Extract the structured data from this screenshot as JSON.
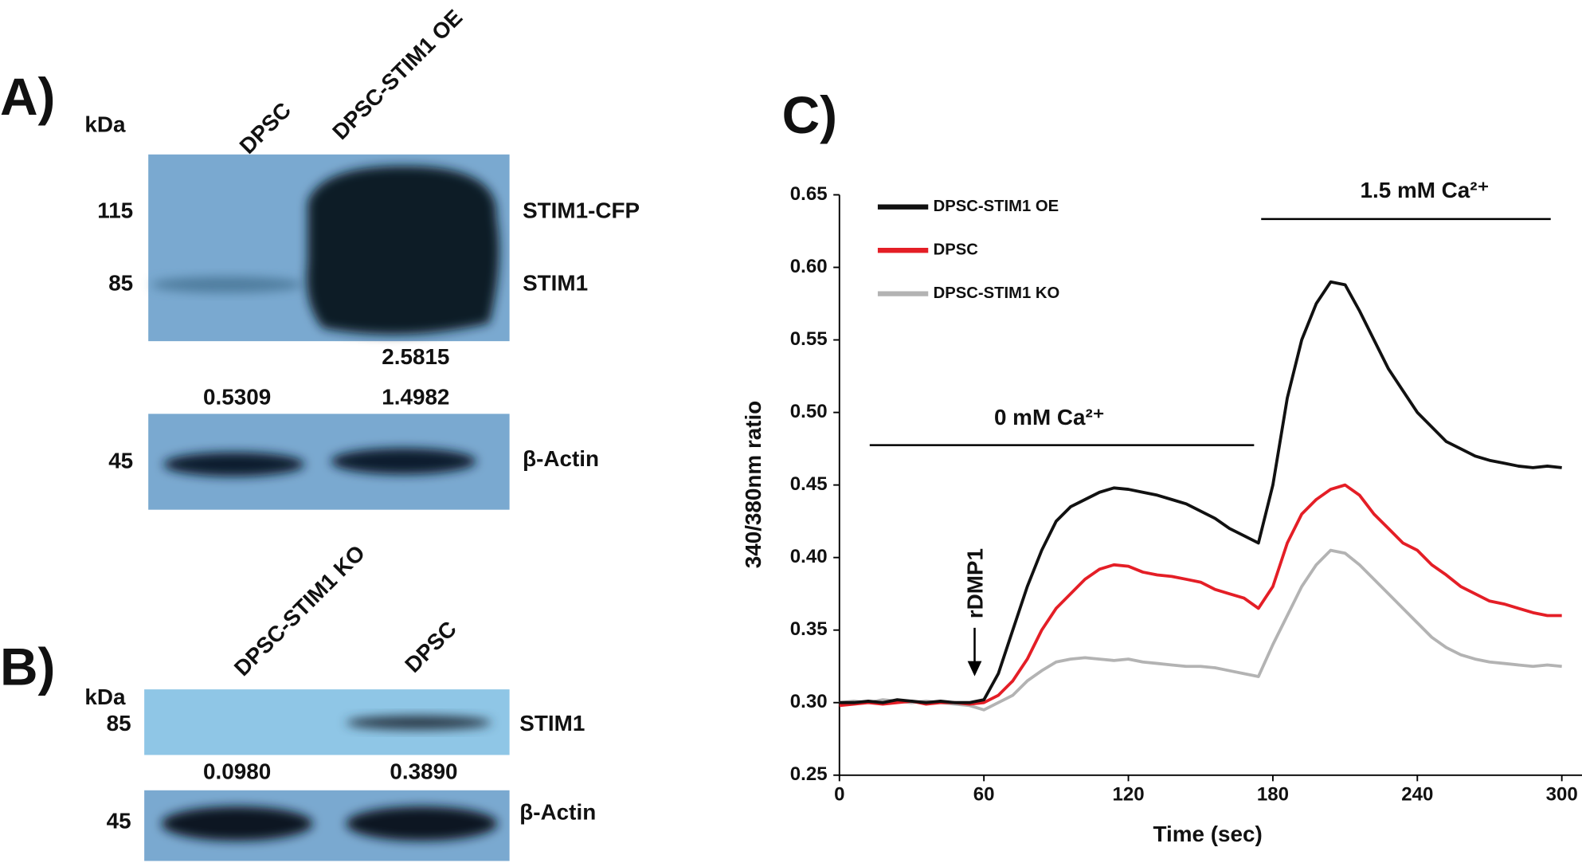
{
  "panel_a": {
    "label": "A)",
    "unit": "kDa",
    "lanes": [
      "DPSC",
      "DPSC-STIM1 OE"
    ],
    "markers": [
      115,
      85,
      45
    ],
    "bands": [
      "STIM1-CFP",
      "STIM1",
      "β-Actin"
    ],
    "ratios": [
      "2.5815",
      "0.5309",
      "1.4982"
    ]
  },
  "panel_b": {
    "label": "B)",
    "unit": "kDa",
    "lanes": [
      "DPSC-STIM1 KO",
      "DPSC"
    ],
    "markers": [
      85,
      45
    ],
    "bands": [
      "STIM1",
      "β-Actin"
    ],
    "ratios": [
      "0.0980",
      "0.3890"
    ]
  },
  "chart_data": {
    "type": "line",
    "panel_label": "C)",
    "x_label": "Time (sec)",
    "y_label": "340/380nm ratio",
    "annotations": [
      "0 mM Ca²⁺",
      "1.5 mM Ca²⁺",
      "rDMP1"
    ],
    "x": [
      0,
      6,
      12,
      18,
      24,
      30,
      36,
      42,
      48,
      54,
      60,
      66,
      72,
      78,
      84,
      90,
      96,
      102,
      108,
      114,
      120,
      126,
      132,
      138,
      144,
      150,
      156,
      162,
      168,
      174,
      180,
      186,
      192,
      198,
      204,
      210,
      216,
      222,
      228,
      234,
      240,
      246,
      252,
      258,
      264,
      270,
      276,
      282,
      288,
      294,
      300
    ],
    "xlim": [
      0,
      305
    ],
    "xticks": [
      0,
      60,
      120,
      180,
      240,
      300
    ],
    "ylim": [
      0.25,
      0.65
    ],
    "yticks": [
      0.25,
      {
        "value": 0.3,
        "label": "0.30"
      },
      0.35,
      {
        "value": 0.4,
        "label": "0.40"
      },
      0.45,
      {
        "value": 0.5,
        "label": "0.50"
      },
      0.55,
      {
        "value": 0.6,
        "label": "0.60"
      },
      0.65
    ],
    "legend": "upper left",
    "series": [
      {
        "name": "DPSC-STIM1 OE",
        "color": "#111111",
        "values": [
          0.3,
          0.3,
          0.301,
          0.3,
          0.302,
          0.301,
          0.3,
          0.301,
          0.3,
          0.3,
          0.302,
          0.32,
          0.35,
          0.38,
          0.405,
          0.425,
          0.435,
          0.44,
          0.445,
          0.448,
          0.447,
          0.445,
          0.443,
          0.44,
          0.437,
          0.432,
          0.427,
          0.42,
          0.415,
          0.41,
          0.45,
          0.51,
          0.55,
          0.575,
          0.59,
          0.588,
          0.57,
          0.55,
          0.53,
          0.515,
          0.5,
          0.49,
          0.48,
          0.475,
          0.47,
          0.467,
          0.465,
          0.463,
          0.462,
          0.463,
          0.462
        ]
      },
      {
        "name": "DPSC",
        "color": "#e41e26",
        "values": [
          0.298,
          0.299,
          0.3,
          0.299,
          0.3,
          0.301,
          0.299,
          0.3,
          0.3,
          0.299,
          0.3,
          0.305,
          0.315,
          0.33,
          0.35,
          0.365,
          0.375,
          0.385,
          0.392,
          0.395,
          0.394,
          0.39,
          0.388,
          0.387,
          0.385,
          0.383,
          0.378,
          0.375,
          0.372,
          0.365,
          0.38,
          0.41,
          0.43,
          0.44,
          0.447,
          0.45,
          0.443,
          0.43,
          0.42,
          0.41,
          0.405,
          0.395,
          0.388,
          0.38,
          0.375,
          0.37,
          0.368,
          0.365,
          0.362,
          0.36,
          0.36
        ]
      },
      {
        "name": "DPSC-STIM1 KO",
        "color": "#b3b3b3",
        "values": [
          0.3,
          0.301,
          0.3,
          0.302,
          0.301,
          0.3,
          0.301,
          0.3,
          0.299,
          0.298,
          0.295,
          0.3,
          0.305,
          0.315,
          0.322,
          0.328,
          0.33,
          0.331,
          0.33,
          0.329,
          0.33,
          0.328,
          0.327,
          0.326,
          0.325,
          0.325,
          0.324,
          0.322,
          0.32,
          0.318,
          0.34,
          0.36,
          0.38,
          0.395,
          0.405,
          0.403,
          0.395,
          0.385,
          0.375,
          0.365,
          0.355,
          0.345,
          0.338,
          0.333,
          0.33,
          0.328,
          0.327,
          0.326,
          0.325,
          0.326,
          0.325
        ]
      }
    ]
  }
}
